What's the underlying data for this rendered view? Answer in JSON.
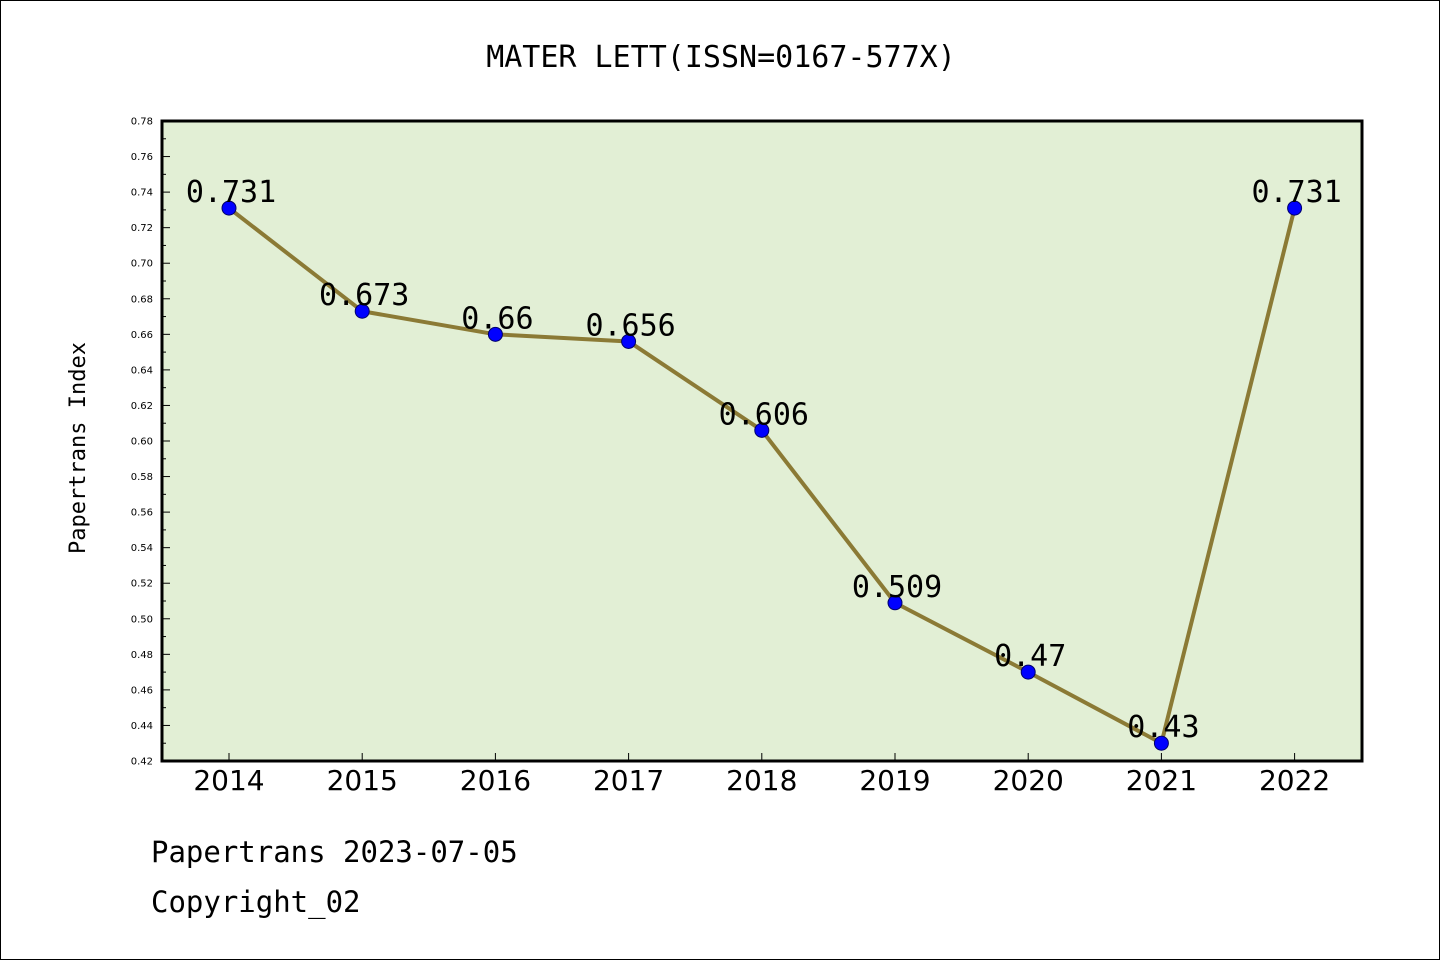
{
  "chart_data": {
    "type": "line",
    "title": "MATER LETT(ISSN=0167-577X)",
    "xlabel": "",
    "ylabel": "Papertrans Index",
    "categories": [
      "2014",
      "2015",
      "2016",
      "2017",
      "2018",
      "2019",
      "2020",
      "2021",
      "2022"
    ],
    "values": [
      0.731,
      0.673,
      0.66,
      0.656,
      0.606,
      0.509,
      0.47,
      0.43,
      0.731
    ],
    "data_labels": [
      "0.731",
      "0.673",
      "0.66",
      "0.656",
      "0.606",
      "0.509",
      "0.47",
      "0.43",
      "0.731"
    ],
    "ylim": [
      0.42,
      0.78
    ],
    "yticks": [
      "0.42",
      "0.44",
      "0.46",
      "0.48",
      "0.50",
      "0.52",
      "0.54",
      "0.56",
      "0.58",
      "0.60",
      "0.62",
      "0.64",
      "0.66",
      "0.68",
      "0.70",
      "0.72",
      "0.74",
      "0.76",
      "0.78"
    ],
    "grid": false,
    "legend": "none",
    "colors": {
      "plot_background": "#e2efd5",
      "line": "#8b7a35",
      "marker": "#0000ff",
      "marker_edge": "#00006a"
    }
  },
  "footer": {
    "line1": "Papertrans 2023-07-05",
    "line2": "Copyright_02"
  }
}
